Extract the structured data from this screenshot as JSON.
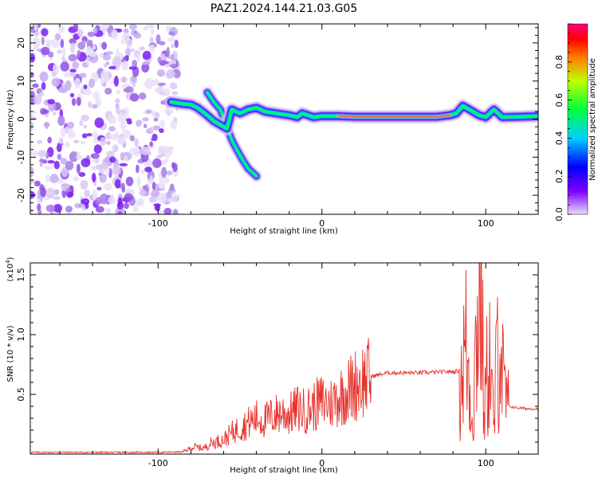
{
  "title": "PAZ1.2024.144.21.03.G05",
  "chart_data": [
    {
      "type": "heatmap",
      "xlabel": "Height of straight line (km)",
      "ylabel": "Frequency (Hz)",
      "xlim": [
        -178,
        132
      ],
      "ylim": [
        -25,
        25
      ],
      "xticks": [
        -100,
        0,
        100
      ],
      "yticks": [
        -20,
        -10,
        0,
        10,
        20
      ],
      "colorbar": {
        "label": "Normalized spectral amplitude",
        "range": [
          0,
          1
        ],
        "ticks": [
          0.0,
          0.2,
          0.4,
          0.6,
          0.8
        ],
        "colormap": [
          "#e6ddf7",
          "#8000ff",
          "#0000ff",
          "#00d0ff",
          "#00ff40",
          "#c0ff00",
          "#ff8000",
          "#ff0000",
          "#ff0080"
        ]
      },
      "noise_region": {
        "x": [
          -178,
          -88
        ],
        "y": [
          -25,
          25
        ]
      },
      "ridge": [
        {
          "x": -92,
          "y": 4.5
        },
        {
          "x": -85,
          "y": 4.0
        },
        {
          "x": -80,
          "y": 3.8
        },
        {
          "x": -76,
          "y": 3.0
        },
        {
          "x": -73,
          "y": 2.0
        },
        {
          "x": -70,
          "y": 1.0
        },
        {
          "x": -66,
          "y": -0.5
        },
        {
          "x": -62,
          "y": -1.5
        },
        {
          "x": -58,
          "y": -2.5
        },
        {
          "x": -55,
          "y": 2.5
        },
        {
          "x": -50,
          "y": 1.5
        },
        {
          "x": -45,
          "y": 2.5
        },
        {
          "x": -40,
          "y": 3.0
        },
        {
          "x": -35,
          "y": 2.0
        },
        {
          "x": -28,
          "y": 1.5
        },
        {
          "x": -20,
          "y": 1.0
        },
        {
          "x": -15,
          "y": 0.5
        },
        {
          "x": -12,
          "y": 1.5
        },
        {
          "x": -5,
          "y": 0.5
        },
        {
          "x": 0,
          "y": 0.8
        },
        {
          "x": 10,
          "y": 0.8
        },
        {
          "x": 20,
          "y": 0.6
        },
        {
          "x": 40,
          "y": 0.6
        },
        {
          "x": 60,
          "y": 0.6
        },
        {
          "x": 70,
          "y": 0.6
        },
        {
          "x": 78,
          "y": 1.0
        },
        {
          "x": 82,
          "y": 1.5
        },
        {
          "x": 86,
          "y": 3.5
        },
        {
          "x": 92,
          "y": 2.0
        },
        {
          "x": 96,
          "y": 1.0
        },
        {
          "x": 100,
          "y": 0.5
        },
        {
          "x": 105,
          "y": 2.5
        },
        {
          "x": 110,
          "y": 0.5
        },
        {
          "x": 120,
          "y": 0.6
        },
        {
          "x": 132,
          "y": 0.8
        }
      ],
      "branch": [
        {
          "x": -70,
          "y": 7.0
        },
        {
          "x": -66,
          "y": 4.5
        },
        {
          "x": -62,
          "y": 2.5
        },
        {
          "x": -58,
          "y": -2.0
        },
        {
          "x": -55,
          "y": -5.5
        },
        {
          "x": -52,
          "y": -8.0
        },
        {
          "x": -48,
          "y": -11.0
        },
        {
          "x": -45,
          "y": -13.0
        },
        {
          "x": -40,
          "y": -15.0
        }
      ]
    },
    {
      "type": "line",
      "xlabel": "Height of straight line (km)",
      "ylabel": "SNR (10 * v/v)",
      "y_multiplier": "(x10",
      "y_multiplier_exp": "4",
      "xlim": [
        -178,
        132
      ],
      "ylim": [
        0,
        16000
      ],
      "xticks": [
        -100,
        0,
        100
      ],
      "yticks": [
        {
          "value": 5000,
          "label": "0.5"
        },
        {
          "value": 10000,
          "label": "1.0"
        },
        {
          "value": 15000,
          "label": "1.5"
        }
      ],
      "color": "#e8302a",
      "series": [
        {
          "values": [
            {
              "x": -178,
              "y": 150
            },
            {
              "x": -150,
              "y": 150
            },
            {
              "x": -100,
              "y": 150
            },
            {
              "x": -85,
              "y": 180
            },
            {
              "x": -78,
              "y": 600
            },
            {
              "x": -72,
              "y": 500
            },
            {
              "x": -68,
              "y": 900
            },
            {
              "x": -60,
              "y": 1200
            },
            {
              "x": -55,
              "y": 1800
            },
            {
              "x": -50,
              "y": 2200
            },
            {
              "x": -45,
              "y": 2600
            },
            {
              "x": -40,
              "y": 3000
            },
            {
              "x": -35,
              "y": 2800
            },
            {
              "x": -30,
              "y": 3200
            },
            {
              "x": -25,
              "y": 3500
            },
            {
              "x": -20,
              "y": 3300
            },
            {
              "x": -15,
              "y": 3800
            },
            {
              "x": -10,
              "y": 3600
            },
            {
              "x": -5,
              "y": 4000
            },
            {
              "x": 0,
              "y": 4400
            },
            {
              "x": 5,
              "y": 4200
            },
            {
              "x": 10,
              "y": 4800
            },
            {
              "x": 15,
              "y": 5200
            },
            {
              "x": 20,
              "y": 5800
            },
            {
              "x": 25,
              "y": 6200
            },
            {
              "x": 30,
              "y": 6500
            },
            {
              "x": 40,
              "y": 6800
            },
            {
              "x": 50,
              "y": 6800
            },
            {
              "x": 60,
              "y": 6800
            },
            {
              "x": 70,
              "y": 6850
            },
            {
              "x": 80,
              "y": 6900
            },
            {
              "x": 85,
              "y": 7000
            },
            {
              "x": 88,
              "y": 9000
            },
            {
              "x": 92,
              "y": 3000
            },
            {
              "x": 95,
              "y": 12000
            },
            {
              "x": 97,
              "y": 16000
            },
            {
              "x": 99,
              "y": 3000
            },
            {
              "x": 102,
              "y": 9000
            },
            {
              "x": 105,
              "y": 2000
            },
            {
              "x": 108,
              "y": 12000
            },
            {
              "x": 111,
              "y": 5000
            },
            {
              "x": 114,
              "y": 4000
            },
            {
              "x": 118,
              "y": 3900
            },
            {
              "x": 125,
              "y": 3800
            },
            {
              "x": 132,
              "y": 3800
            }
          ]
        }
      ]
    }
  ]
}
